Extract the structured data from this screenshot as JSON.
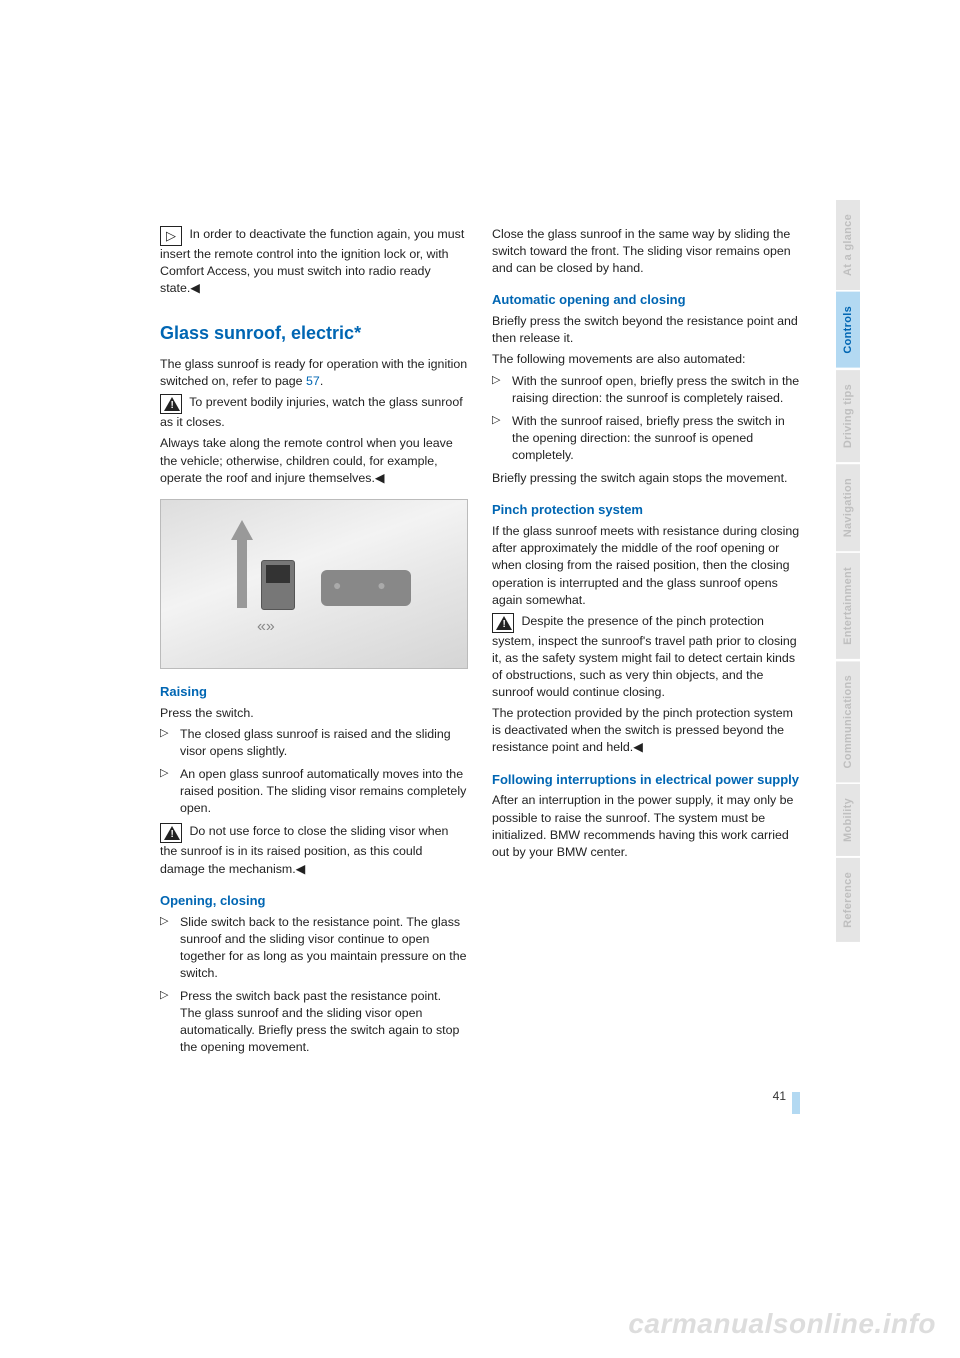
{
  "colors": {
    "accent": "#0066b3",
    "tab_active_bg": "#b3d9f2",
    "tab_inactive_bg": "#e5e5e5",
    "tab_inactive_fg": "#bfbfbf",
    "body_text": "#222222",
    "watermark": "#dddddd"
  },
  "left": {
    "tip1": "In order to deactivate the function again, you must insert the remote control into the ignition lock or, with Comfort Access, you must switch into radio ready state.◀",
    "h2": "Glass sunroof, electric*",
    "intro": "The glass sunroof is ready for operation with the ignition switched on, refer to page ",
    "intro_link": "57",
    "intro_end": ".",
    "warn1": "To prevent bodily injuries, watch the glass sunroof as it closes.",
    "warn1b": "Always take along the remote control when you leave the vehicle; otherwise, children could, for example, operate the roof and injure themselves.◀",
    "h3a": "Raising",
    "p_a": "Press the switch.",
    "li_a1": "The closed glass sunroof is raised and the sliding visor opens slightly.",
    "li_a2": "An open glass sunroof automatically moves into the raised position. The sliding visor remains completely open.",
    "warn2": "Do not use force to close the sliding visor when the sunroof is in its raised position, as this could damage the mechanism.◀",
    "h3b": "Opening, closing",
    "li_b1": "Slide switch back to the resistance point. The glass sunroof and the sliding visor continue to open together for as long as you maintain pressure on the switch.",
    "li_b2": "Press the switch back past the resistance point.",
    "li_b2b": "The glass sunroof and the sliding visor open automatically. Briefly press the switch again to stop the opening movement."
  },
  "right": {
    "p1": "Close the glass sunroof in the same way by sliding the switch toward the front. The sliding visor remains open and can be closed by hand.",
    "h3a": "Automatic opening and closing",
    "p2": "Briefly press the switch beyond the resistance point and then release it.",
    "p3": "The following movements are also automated:",
    "li_a1": "With the sunroof open, briefly press the switch in the raising direction: the sunroof is completely raised.",
    "li_a2": "With the sunroof raised, briefly press the switch in the opening direction: the sunroof is opened completely.",
    "p4": "Briefly pressing the switch again stops the movement.",
    "h3b": "Pinch protection system",
    "p5": "If the glass sunroof meets with resistance during closing after approximately the middle of the roof opening or when closing from the raised position, then the closing operation is interrupted and the glass sunroof opens again somewhat.",
    "warn1": "Despite the presence of the pinch protection system, inspect the sunroof's travel path prior to closing it, as the safety system might fail to detect certain kinds of obstructions, such as very thin objects, and the sunroof would continue closing.",
    "warn1b": "The protection provided by the pinch protection system is deactivated when the switch is pressed beyond the resistance point and held.◀",
    "h3c": "Following interruptions in electrical power supply",
    "p6": "After an interruption in the power supply, it may only be possible to raise the sunroof. The system must be initialized. BMW recommends having this work carried out by your BMW center."
  },
  "sidebar": [
    {
      "label": "At a glance",
      "active": false
    },
    {
      "label": "Controls",
      "active": true
    },
    {
      "label": "Driving tips",
      "active": false
    },
    {
      "label": "Navigation",
      "active": false
    },
    {
      "label": "Entertainment",
      "active": false
    },
    {
      "label": "Communications",
      "active": false
    },
    {
      "label": "Mobility",
      "active": false
    },
    {
      "label": "Reference",
      "active": false
    }
  ],
  "page_number": "41",
  "watermark": "carmanualsonline.info"
}
